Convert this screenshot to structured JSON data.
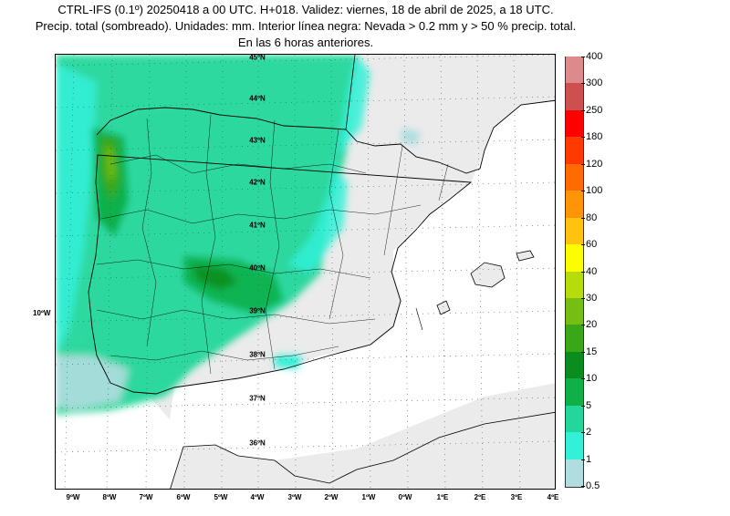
{
  "header": {
    "line1": "CTRL-IFS (0.1º) 20250418 a 00 UTC. H+018. Validez: viernes, 18 de abril de 2025, a 18 UTC.",
    "line2": "Precip. total (sombreado). Unidades: mm. Interior línea negra: Nevada > 0.2 mm y > 50 % precip. total.",
    "line3": "En las 6 horas anteriores."
  },
  "map": {
    "lat_labels": [
      "45ºN",
      "44ºN",
      "43ºN",
      "42ºN",
      "41ºN",
      "40ºN",
      "39ºN",
      "38ºN",
      "37ºN",
      "36ºN"
    ],
    "lon_labels": [
      "9ºW",
      "8ºW",
      "7ºW",
      "6ºW",
      "5ºW",
      "4ºW",
      "3ºW",
      "2ºW",
      "1ºW",
      "0ºW",
      "1ºE",
      "2ºE",
      "3ºE",
      "4ºE"
    ],
    "side_label": "10ºW",
    "colors": {
      "sea": "#ffffff",
      "land": "#ebebeb",
      "border": "#000000"
    }
  },
  "legend": {
    "levels": [
      "0.5",
      "1",
      "2",
      "5",
      "10",
      "15",
      "20",
      "30",
      "40",
      "60",
      "80",
      "100",
      "120",
      "180",
      "250",
      "300",
      "400"
    ],
    "colors": [
      "#b0dde0",
      "#33f0d8",
      "#22d79b",
      "#10b049",
      "#0a8d1e",
      "#3aa716",
      "#76bf12",
      "#b6dc0b",
      "#fcfe00",
      "#ffc20f",
      "#ff9407",
      "#ff6b00",
      "#ff3a00",
      "#ff0000",
      "#cd4f4f",
      "#dd8a8a",
      "#efc3c3"
    ]
  }
}
